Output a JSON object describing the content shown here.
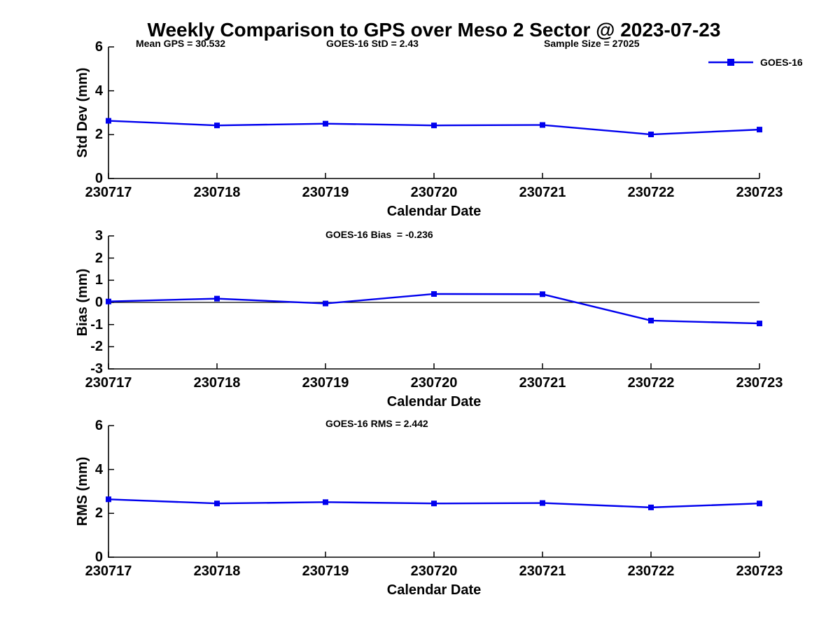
{
  "header": {
    "title": "Weekly Comparison to GPS over Meso 2 Sector @ 2023-07-23",
    "annotations": {
      "mean_gps": "Mean GPS = 30.532",
      "std": "GOES-16 StD = 2.43",
      "sample_size": "Sample Size = 27025"
    }
  },
  "legend": {
    "label": "GOES-16",
    "color": "#0000EE",
    "position": "top-right"
  },
  "chart_data": [
    {
      "type": "line",
      "name": "std-dev-subplot",
      "title": "",
      "ylabel": "Std Dev (mm)",
      "xlabel": "Calendar Date",
      "categories": [
        "230717",
        "230718",
        "230719",
        "230720",
        "230721",
        "230722",
        "230723"
      ],
      "ylim": [
        0,
        6
      ],
      "yticks": [
        0,
        2,
        4,
        6
      ],
      "grid": false,
      "zero_line": false,
      "series": [
        {
          "name": "GOES-16",
          "values": [
            2.63,
            2.42,
            2.5,
            2.42,
            2.44,
            2.01,
            2.23
          ]
        }
      ]
    },
    {
      "type": "line",
      "name": "bias-subplot",
      "title": "",
      "annotation": "GOES-16 Bias  = -0.236",
      "ylabel": "Bias (mm)",
      "xlabel": "Calendar Date",
      "categories": [
        "230717",
        "230718",
        "230719",
        "230720",
        "230721",
        "230722",
        "230723"
      ],
      "ylim": [
        -3,
        3
      ],
      "yticks": [
        -3,
        -2,
        -1,
        0,
        1,
        2,
        3
      ],
      "grid": false,
      "zero_line": true,
      "series": [
        {
          "name": "GOES-16",
          "values": [
            0.04,
            0.17,
            -0.05,
            0.38,
            0.37,
            -0.82,
            -0.95
          ]
        }
      ]
    },
    {
      "type": "line",
      "name": "rms-subplot",
      "title": "",
      "annotation": "GOES-16 RMS = 2.442",
      "ylabel": "RMS (mm)",
      "xlabel": "Calendar Date",
      "categories": [
        "230717",
        "230718",
        "230719",
        "230720",
        "230721",
        "230722",
        "230723"
      ],
      "ylim": [
        0,
        6
      ],
      "yticks": [
        0,
        2,
        4,
        6
      ],
      "grid": false,
      "zero_line": false,
      "series": [
        {
          "name": "GOES-16",
          "values": [
            2.64,
            2.45,
            2.51,
            2.45,
            2.47,
            2.27,
            2.45
          ]
        }
      ]
    }
  ]
}
